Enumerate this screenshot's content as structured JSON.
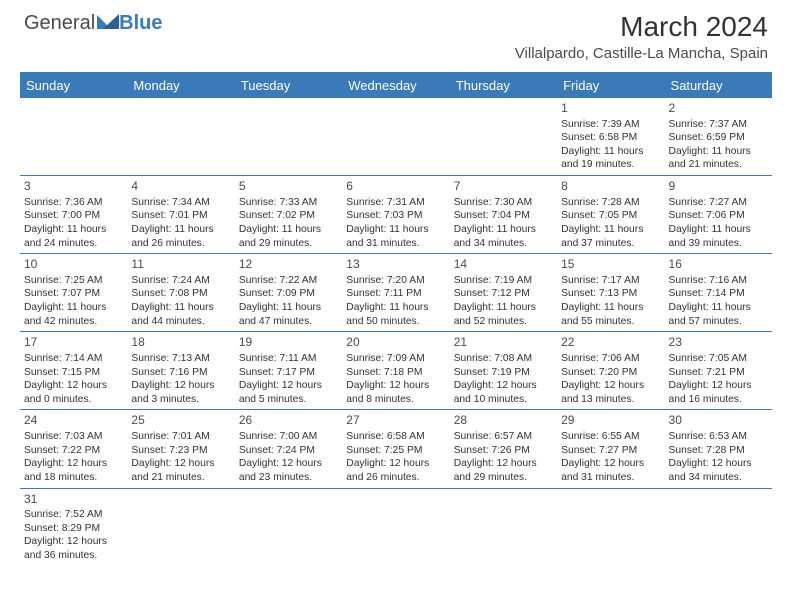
{
  "logo": {
    "general": "General",
    "blue": "Blue"
  },
  "title": "March 2024",
  "location": "Villalpardo, Castille-La Mancha, Spain",
  "colors": {
    "brand_blue": "#3a7ab8",
    "text": "#333333",
    "bg": "#ffffff"
  },
  "day_headers": [
    "Sunday",
    "Monday",
    "Tuesday",
    "Wednesday",
    "Thursday",
    "Friday",
    "Saturday"
  ],
  "weeks": [
    [
      {
        "blank": true
      },
      {
        "blank": true
      },
      {
        "blank": true
      },
      {
        "blank": true
      },
      {
        "blank": true
      },
      {
        "day": "1",
        "sunrise": "Sunrise: 7:39 AM",
        "sunset": "Sunset: 6:58 PM",
        "daylight": "Daylight: 11 hours and 19 minutes."
      },
      {
        "day": "2",
        "sunrise": "Sunrise: 7:37 AM",
        "sunset": "Sunset: 6:59 PM",
        "daylight": "Daylight: 11 hours and 21 minutes."
      }
    ],
    [
      {
        "day": "3",
        "sunrise": "Sunrise: 7:36 AM",
        "sunset": "Sunset: 7:00 PM",
        "daylight": "Daylight: 11 hours and 24 minutes."
      },
      {
        "day": "4",
        "sunrise": "Sunrise: 7:34 AM",
        "sunset": "Sunset: 7:01 PM",
        "daylight": "Daylight: 11 hours and 26 minutes."
      },
      {
        "day": "5",
        "sunrise": "Sunrise: 7:33 AM",
        "sunset": "Sunset: 7:02 PM",
        "daylight": "Daylight: 11 hours and 29 minutes."
      },
      {
        "day": "6",
        "sunrise": "Sunrise: 7:31 AM",
        "sunset": "Sunset: 7:03 PM",
        "daylight": "Daylight: 11 hours and 31 minutes."
      },
      {
        "day": "7",
        "sunrise": "Sunrise: 7:30 AM",
        "sunset": "Sunset: 7:04 PM",
        "daylight": "Daylight: 11 hours and 34 minutes."
      },
      {
        "day": "8",
        "sunrise": "Sunrise: 7:28 AM",
        "sunset": "Sunset: 7:05 PM",
        "daylight": "Daylight: 11 hours and 37 minutes."
      },
      {
        "day": "9",
        "sunrise": "Sunrise: 7:27 AM",
        "sunset": "Sunset: 7:06 PM",
        "daylight": "Daylight: 11 hours and 39 minutes."
      }
    ],
    [
      {
        "day": "10",
        "sunrise": "Sunrise: 7:25 AM",
        "sunset": "Sunset: 7:07 PM",
        "daylight": "Daylight: 11 hours and 42 minutes."
      },
      {
        "day": "11",
        "sunrise": "Sunrise: 7:24 AM",
        "sunset": "Sunset: 7:08 PM",
        "daylight": "Daylight: 11 hours and 44 minutes."
      },
      {
        "day": "12",
        "sunrise": "Sunrise: 7:22 AM",
        "sunset": "Sunset: 7:09 PM",
        "daylight": "Daylight: 11 hours and 47 minutes."
      },
      {
        "day": "13",
        "sunrise": "Sunrise: 7:20 AM",
        "sunset": "Sunset: 7:11 PM",
        "daylight": "Daylight: 11 hours and 50 minutes."
      },
      {
        "day": "14",
        "sunrise": "Sunrise: 7:19 AM",
        "sunset": "Sunset: 7:12 PM",
        "daylight": "Daylight: 11 hours and 52 minutes."
      },
      {
        "day": "15",
        "sunrise": "Sunrise: 7:17 AM",
        "sunset": "Sunset: 7:13 PM",
        "daylight": "Daylight: 11 hours and 55 minutes."
      },
      {
        "day": "16",
        "sunrise": "Sunrise: 7:16 AM",
        "sunset": "Sunset: 7:14 PM",
        "daylight": "Daylight: 11 hours and 57 minutes."
      }
    ],
    [
      {
        "day": "17",
        "sunrise": "Sunrise: 7:14 AM",
        "sunset": "Sunset: 7:15 PM",
        "daylight": "Daylight: 12 hours and 0 minutes."
      },
      {
        "day": "18",
        "sunrise": "Sunrise: 7:13 AM",
        "sunset": "Sunset: 7:16 PM",
        "daylight": "Daylight: 12 hours and 3 minutes."
      },
      {
        "day": "19",
        "sunrise": "Sunrise: 7:11 AM",
        "sunset": "Sunset: 7:17 PM",
        "daylight": "Daylight: 12 hours and 5 minutes."
      },
      {
        "day": "20",
        "sunrise": "Sunrise: 7:09 AM",
        "sunset": "Sunset: 7:18 PM",
        "daylight": "Daylight: 12 hours and 8 minutes."
      },
      {
        "day": "21",
        "sunrise": "Sunrise: 7:08 AM",
        "sunset": "Sunset: 7:19 PM",
        "daylight": "Daylight: 12 hours and 10 minutes."
      },
      {
        "day": "22",
        "sunrise": "Sunrise: 7:06 AM",
        "sunset": "Sunset: 7:20 PM",
        "daylight": "Daylight: 12 hours and 13 minutes."
      },
      {
        "day": "23",
        "sunrise": "Sunrise: 7:05 AM",
        "sunset": "Sunset: 7:21 PM",
        "daylight": "Daylight: 12 hours and 16 minutes."
      }
    ],
    [
      {
        "day": "24",
        "sunrise": "Sunrise: 7:03 AM",
        "sunset": "Sunset: 7:22 PM",
        "daylight": "Daylight: 12 hours and 18 minutes."
      },
      {
        "day": "25",
        "sunrise": "Sunrise: 7:01 AM",
        "sunset": "Sunset: 7:23 PM",
        "daylight": "Daylight: 12 hours and 21 minutes."
      },
      {
        "day": "26",
        "sunrise": "Sunrise: 7:00 AM",
        "sunset": "Sunset: 7:24 PM",
        "daylight": "Daylight: 12 hours and 23 minutes."
      },
      {
        "day": "27",
        "sunrise": "Sunrise: 6:58 AM",
        "sunset": "Sunset: 7:25 PM",
        "daylight": "Daylight: 12 hours and 26 minutes."
      },
      {
        "day": "28",
        "sunrise": "Sunrise: 6:57 AM",
        "sunset": "Sunset: 7:26 PM",
        "daylight": "Daylight: 12 hours and 29 minutes."
      },
      {
        "day": "29",
        "sunrise": "Sunrise: 6:55 AM",
        "sunset": "Sunset: 7:27 PM",
        "daylight": "Daylight: 12 hours and 31 minutes."
      },
      {
        "day": "30",
        "sunrise": "Sunrise: 6:53 AM",
        "sunset": "Sunset: 7:28 PM",
        "daylight": "Daylight: 12 hours and 34 minutes."
      }
    ],
    [
      {
        "day": "31",
        "sunrise": "Sunrise: 7:52 AM",
        "sunset": "Sunset: 8:29 PM",
        "daylight": "Daylight: 12 hours and 36 minutes."
      },
      {
        "blank": true
      },
      {
        "blank": true
      },
      {
        "blank": true
      },
      {
        "blank": true
      },
      {
        "blank": true
      },
      {
        "blank": true
      }
    ]
  ]
}
